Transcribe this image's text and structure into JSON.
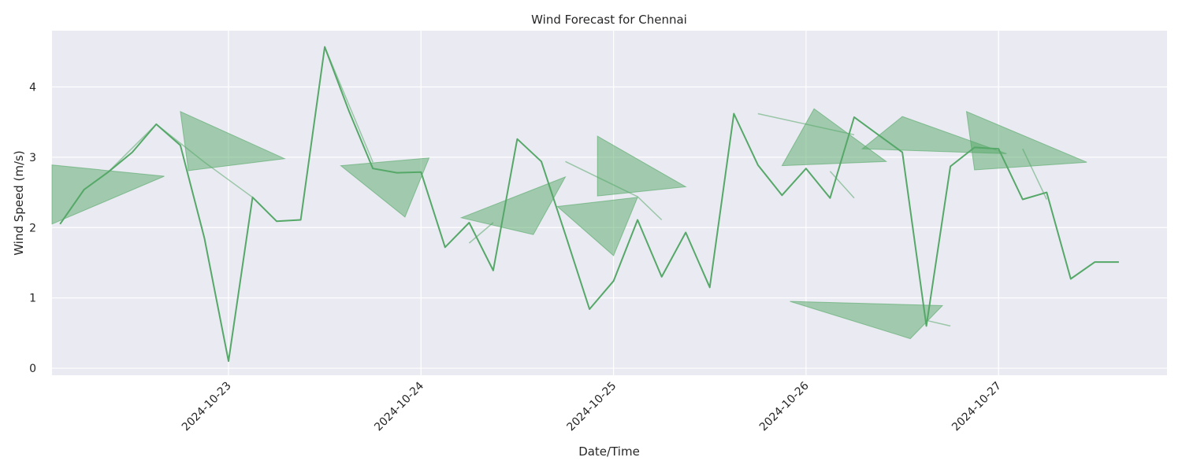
{
  "chart_data": {
    "type": "line",
    "title": "Wind Forecast for Chennai",
    "xlabel": "Date/Time",
    "ylabel": "Wind Speed (m/s)",
    "x_ticks": [
      "2024-10-23",
      "2024-10-24",
      "2024-10-25",
      "2024-10-26",
      "2024-10-27"
    ],
    "y_ticks": [
      "0",
      "1",
      "2",
      "3",
      "4"
    ],
    "xlim": [
      "2024-10-22 02:00",
      "2024-10-27 21:00"
    ],
    "ylim": [
      -0.1,
      4.8
    ],
    "grid": true,
    "background": "#eaeaf2",
    "line_color": "#55a868",
    "series": [
      {
        "x": [
          "2024-10-22 03:00",
          "2024-10-22 06:00",
          "2024-10-22 09:00",
          "2024-10-22 12:00",
          "2024-10-22 15:00",
          "2024-10-22 18:00",
          "2024-10-22 21:00",
          "2024-10-23 00:00",
          "2024-10-23 03:00",
          "2024-10-23 06:00",
          "2024-10-23 09:00",
          "2024-10-23 12:00",
          "2024-10-23 15:00",
          "2024-10-23 18:00",
          "2024-10-23 21:00",
          "2024-10-24 00:00",
          "2024-10-24 03:00",
          "2024-10-24 06:00",
          "2024-10-24 09:00",
          "2024-10-24 12:00",
          "2024-10-24 15:00",
          "2024-10-24 18:00",
          "2024-10-24 21:00",
          "2024-10-25 00:00",
          "2024-10-25 03:00",
          "2024-10-25 06:00",
          "2024-10-25 09:00",
          "2024-10-25 12:00",
          "2024-10-25 15:00",
          "2024-10-25 18:00",
          "2024-10-25 21:00",
          "2024-10-26 00:00",
          "2024-10-26 03:00",
          "2024-10-26 06:00",
          "2024-10-26 09:00",
          "2024-10-26 12:00",
          "2024-10-26 15:00",
          "2024-10-26 18:00",
          "2024-10-26 21:00",
          "2024-10-27 00:00",
          "2024-10-27 03:00",
          "2024-10-27 06:00",
          "2024-10-27 09:00",
          "2024-10-27 12:00",
          "2024-10-27 15:00"
        ],
        "y": [
          2.05,
          2.54,
          2.79,
          3.07,
          3.47,
          3.17,
          1.85,
          0.1,
          2.43,
          2.09,
          2.11,
          4.57,
          3.66,
          2.84,
          2.78,
          2.79,
          1.72,
          2.07,
          1.39,
          3.26,
          2.94,
          1.9,
          0.84,
          1.24,
          2.11,
          1.3,
          1.93,
          1.15,
          3.62,
          2.89,
          2.46,
          2.84,
          2.42,
          3.57,
          3.32,
          3.07,
          0.6,
          2.87,
          3.14,
          3.12,
          2.4,
          2.5,
          1.27,
          1.51,
          1.51
        ]
      }
    ],
    "fill_triangles": [
      [
        [
          "2024-10-22 02:00",
          2.05
        ],
        [
          "2024-10-22 02:00",
          2.89
        ],
        [
          "2024-10-22 16:00",
          2.73
        ]
      ],
      [
        [
          "2024-10-22 18:00",
          3.65
        ],
        [
          "2024-10-22 19:00",
          2.81
        ],
        [
          "2024-10-23 07:00",
          2.98
        ]
      ],
      [
        [
          "2024-10-23 14:00",
          2.88
        ],
        [
          "2024-10-24 01:00",
          2.99
        ],
        [
          "2024-10-23 22:00",
          2.15
        ]
      ],
      [
        [
          "2024-10-24 05:00",
          2.14
        ],
        [
          "2024-10-24 18:00",
          2.72
        ],
        [
          "2024-10-24 14:00",
          1.9
        ]
      ],
      [
        [
          "2024-10-24 17:00",
          2.3
        ],
        [
          "2024-10-25 03:00",
          2.43
        ],
        [
          "2024-10-25 00:00",
          1.6
        ]
      ],
      [
        [
          "2024-10-24 22:00",
          3.3
        ],
        [
          "2024-10-25 09:00",
          2.58
        ],
        [
          "2024-10-24 22:00",
          2.45
        ]
      ],
      [
        [
          "2024-10-25 21:00",
          2.88
        ],
        [
          "2024-10-26 01:00",
          3.69
        ],
        [
          "2024-10-26 10:00",
          2.94
        ]
      ],
      [
        [
          "2024-10-26 07:00",
          3.12
        ],
        [
          "2024-10-26 12:00",
          3.58
        ],
        [
          "2024-10-27 01:00",
          3.05
        ]
      ],
      [
        [
          "2024-10-26 20:00",
          3.65
        ],
        [
          "2024-10-27 11:00",
          2.93
        ],
        [
          "2024-10-26 21:00",
          2.82
        ]
      ],
      [
        [
          "2024-10-25 22:00",
          0.95
        ],
        [
          "2024-10-26 17:00",
          0.89
        ],
        [
          "2024-10-26 13:00",
          0.42
        ]
      ]
    ],
    "faint_lines": [
      [
        [
          "2024-10-22 09:00",
          2.79
        ],
        [
          "2024-10-22 15:00",
          3.47
        ],
        [
          "2024-10-22 21:00",
          2.93
        ],
        [
          "2024-10-23 03:00",
          2.43
        ]
      ],
      [
        [
          "2024-10-23 12:00",
          4.57
        ],
        [
          "2024-10-23 18:00",
          2.93
        ]
      ],
      [
        [
          "2024-10-24 06:00",
          1.78
        ],
        [
          "2024-10-24 09:00",
          2.07
        ]
      ],
      [
        [
          "2024-10-24 18:00",
          2.94
        ],
        [
          "2024-10-25 03:00",
          2.44
        ],
        [
          "2024-10-25 06:00",
          2.11
        ]
      ],
      [
        [
          "2024-10-25 18:00",
          3.62
        ],
        [
          "2024-10-26 06:00",
          3.32
        ]
      ],
      [
        [
          "2024-10-26 06:00",
          2.42
        ],
        [
          "2024-10-26 03:00",
          2.8
        ]
      ],
      [
        [
          "2024-10-26 15:00",
          0.68
        ],
        [
          "2024-10-26 18:00",
          0.6
        ]
      ],
      [
        [
          "2024-10-27 03:00",
          3.12
        ],
        [
          "2024-10-27 06:00",
          2.4
        ]
      ]
    ]
  }
}
